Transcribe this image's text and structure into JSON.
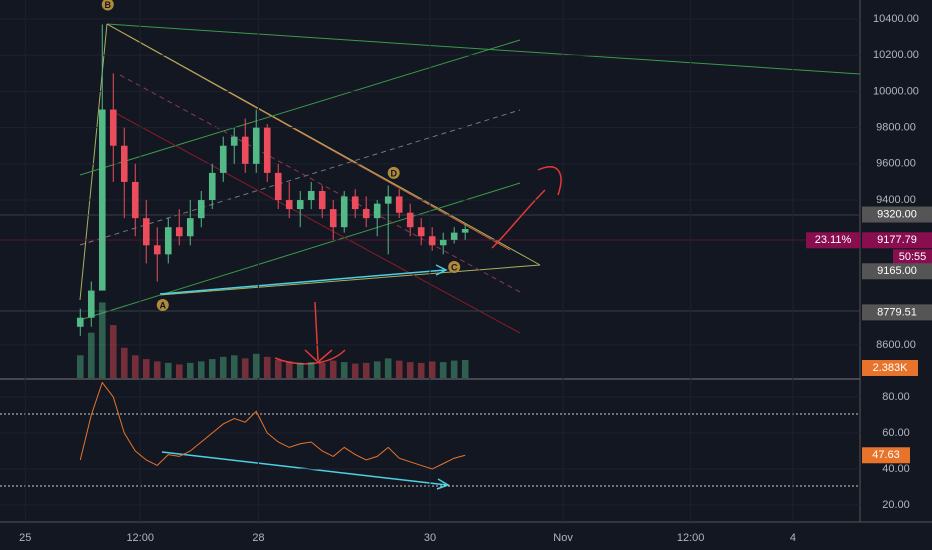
{
  "chart_data": {
    "type": "candlestick",
    "x": [
      0,
      1,
      2,
      3,
      4,
      5,
      6,
      7,
      8,
      9,
      10,
      11,
      12,
      13,
      14,
      15,
      16,
      17,
      18,
      19,
      20,
      21,
      22,
      23,
      24,
      25,
      26,
      27,
      28,
      29,
      30,
      31,
      32,
      33,
      34,
      35
    ],
    "open": [
      8700,
      8750,
      8900,
      9900,
      9700,
      9500,
      9300,
      9150,
      9100,
      9250,
      9200,
      9300,
      9400,
      9550,
      9700,
      9750,
      9600,
      9800,
      9550,
      9400,
      9350,
      9400,
      9450,
      9350,
      9250,
      9420,
      9350,
      9300,
      9380,
      9420,
      9330,
      9250,
      9200,
      9150,
      9180,
      9220
    ],
    "high": [
      8800,
      8950,
      10370,
      10100,
      9800,
      9600,
      9400,
      9250,
      9300,
      9350,
      9400,
      9450,
      9600,
      9750,
      9800,
      9850,
      9900,
      9820,
      9600,
      9500,
      9450,
      9500,
      9480,
      9400,
      9450,
      9460,
      9420,
      9400,
      9480,
      9460,
      9380,
      9300,
      9250,
      9220,
      9250,
      9270
    ],
    "low": [
      8650,
      8700,
      8900,
      9500,
      9300,
      9200,
      9050,
      8950,
      9050,
      9150,
      9150,
      9250,
      9350,
      9500,
      9600,
      9550,
      9550,
      9500,
      9350,
      9300,
      9250,
      9350,
      9300,
      9180,
      9220,
      9300,
      9250,
      9200,
      9100,
      9300,
      9200,
      9150,
      9120,
      9100,
      9160,
      9180
    ],
    "close": [
      8750,
      8900,
      9900,
      9700,
      9500,
      9300,
      9150,
      9100,
      9250,
      9200,
      9300,
      9400,
      9550,
      9700,
      9750,
      9600,
      9800,
      9550,
      9400,
      9350,
      9400,
      9450,
      9350,
      9250,
      9420,
      9350,
      9300,
      9380,
      9420,
      9330,
      9250,
      9200,
      9150,
      9180,
      9220,
      9240
    ],
    "up_color": "#53b987",
    "down_color": "#eb4d5c",
    "volume": [
      3,
      6,
      10,
      7,
      4,
      3,
      2.5,
      2.2,
      2,
      1.8,
      2,
      2.2,
      2.5,
      2.8,
      3,
      2.6,
      3.2,
      2.8,
      2.4,
      2.2,
      2,
      2.1,
      2,
      2.3,
      2.1,
      1.9,
      2,
      2.2,
      2.6,
      2.3,
      2.1,
      2,
      2.2,
      2.1,
      2.3,
      2.383
    ],
    "volume_ylim": [
      0,
      50
    ],
    "rsi": [
      45,
      70,
      88,
      80,
      60,
      50,
      45,
      42,
      48,
      47,
      50,
      55,
      60,
      65,
      68,
      66,
      72,
      60,
      55,
      52,
      54,
      55,
      50,
      47,
      52,
      48,
      45,
      47,
      52,
      46,
      44,
      42,
      40,
      43,
      46,
      47.63
    ],
    "rsi_color": "#e8742c",
    "xlim": [
      -7.3,
      70.9
    ],
    "xticks": [
      {
        "value": -5,
        "label": "25"
      },
      {
        "value": 5.45,
        "label": "12:00"
      },
      {
        "value": 16.2,
        "label": "28"
      },
      {
        "value": 31.8,
        "label": "30"
      },
      {
        "value": 43.9,
        "label": "Nov"
      },
      {
        "value": 55.5,
        "label": "12:00"
      },
      {
        "value": 64.8,
        "label": "4"
      }
    ],
    "ylim": [
      8417,
      10505
    ],
    "yticks": [
      {
        "value": 10400,
        "label": "10400.00"
      },
      {
        "value": 10200,
        "label": "10200.00"
      },
      {
        "value": 10000,
        "label": "10000.00"
      },
      {
        "value": 9800,
        "label": "9800.00"
      },
      {
        "value": 9600,
        "label": "9600.00"
      },
      {
        "value": 9400,
        "label": "9400.00"
      },
      {
        "value": 8600,
        "label": "8600.00"
      }
    ],
    "rsi_ylim": [
      10.6,
      89.4
    ],
    "rsi_yticks": [
      {
        "value": 80,
        "label": "80.00"
      },
      {
        "value": 60,
        "label": "60.00"
      },
      {
        "value": 40,
        "label": "40.00"
      },
      {
        "value": 20,
        "label": "20.00"
      }
    ],
    "price_badges": [
      {
        "value": 9320,
        "label": "9320.00",
        "color": "#555555"
      },
      {
        "value": 9177.79,
        "label": "9177.79",
        "color": "#880e4f"
      },
      {
        "value": 8779.51,
        "label": "8779.51",
        "color": "#555555"
      }
    ],
    "badge_texts": [
      {
        "label": "23.11%",
        "color": "#880e4f"
      },
      {
        "label": "50:55",
        "color": "#880e4f"
      },
      {
        "label": "9165.00",
        "color": "#555555"
      }
    ],
    "volume_badge": {
      "value": 2.383,
      "label": "2.383K",
      "color": "#e8742c"
    },
    "rsi_badge": {
      "value": 47.63,
      "label": "47.63",
      "color": "#e8742c"
    },
    "annotations": [
      {
        "text": "B",
        "x": 2.5,
        "y": 10480
      },
      {
        "text": "A",
        "x": 7.5,
        "y": 8820
      },
      {
        "text": "D",
        "x": 28.5,
        "y": 9550
      },
      {
        "text": "C",
        "x": 34,
        "y": 9030
      }
    ]
  }
}
